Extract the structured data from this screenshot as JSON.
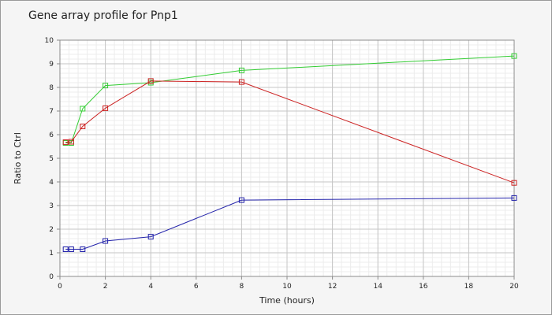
{
  "chart_data": {
    "type": "line",
    "title": "Gene array profile for Pnp1",
    "xlabel": "Time (hours)",
    "ylabel": "Ratio to Ctrl",
    "xlim": [
      0,
      20
    ],
    "ylim": [
      0,
      10
    ],
    "xticks": [
      0,
      2,
      4,
      6,
      8,
      10,
      12,
      14,
      16,
      18,
      20
    ],
    "yticks": [
      0,
      1,
      2,
      3,
      4,
      5,
      6,
      7,
      8,
      9,
      10
    ],
    "grid": true,
    "marker": "square",
    "series": [
      {
        "color": "#33cc33",
        "x": [
          0.25,
          0.5,
          1,
          2,
          4,
          8,
          20
        ],
        "y": [
          5.65,
          5.65,
          7.1,
          8.08,
          8.2,
          8.72,
          9.33
        ]
      },
      {
        "color": "#cc2222",
        "x": [
          0.25,
          0.5,
          1,
          2,
          4,
          8,
          20
        ],
        "y": [
          5.68,
          5.7,
          6.35,
          7.12,
          8.27,
          8.23,
          3.96
        ]
      },
      {
        "color": "#2222aa",
        "x": [
          0.25,
          0.5,
          1,
          2,
          4,
          8,
          20
        ],
        "y": [
          1.15,
          1.15,
          1.15,
          1.5,
          1.68,
          3.23,
          3.32
        ]
      }
    ]
  }
}
